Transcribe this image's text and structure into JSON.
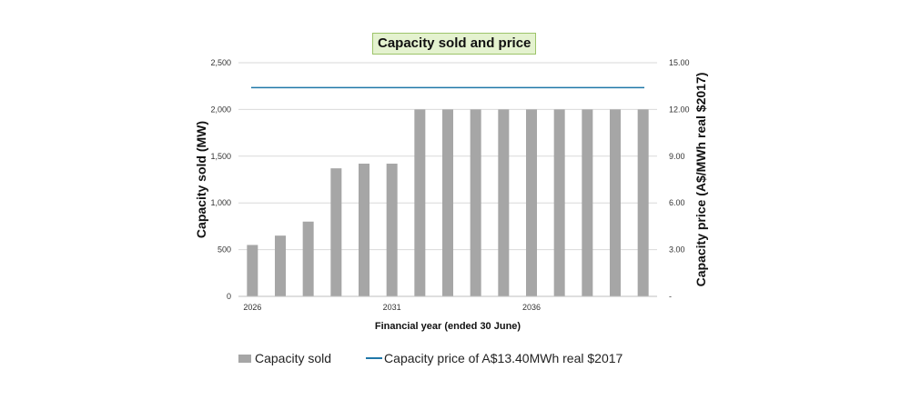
{
  "chart_data": {
    "type": "bar",
    "title": "Capacity sold and price",
    "xlabel": "Financial year (ended 30 June)",
    "ylabel": "Capacity sold (MW)",
    "y2label": "Capacity price (A$/MWh real $2017)",
    "ylim": [
      0,
      2500
    ],
    "y2lim": [
      0,
      15
    ],
    "y_ticks": [
      "0",
      "500",
      "1,000",
      "1,500",
      "2,000",
      "2,500"
    ],
    "y2_ticks": [
      "-",
      "3.00",
      "6.00",
      "9.00",
      "12.00",
      "15.00"
    ],
    "x_tick_labels": [
      "2026",
      "2031",
      "2036"
    ],
    "categories": [
      2026,
      2027,
      2028,
      2029,
      2030,
      2031,
      2032,
      2033,
      2034,
      2035,
      2036,
      2037,
      2038,
      2039,
      2040
    ],
    "series": [
      {
        "name": "Capacity sold",
        "type": "bar",
        "axis": "left",
        "color": "#a6a6a6",
        "values": [
          550,
          650,
          800,
          1370,
          1420,
          1420,
          2000,
          2000,
          2000,
          2000,
          2000,
          2000,
          2000,
          2000,
          2000
        ]
      },
      {
        "name": "Capacity price of A$13.40MWh real $2017",
        "type": "line",
        "axis": "right",
        "color": "#1f77a8",
        "values": [
          13.4,
          13.4,
          13.4,
          13.4,
          13.4,
          13.4,
          13.4,
          13.4,
          13.4,
          13.4,
          13.4,
          13.4,
          13.4,
          13.4,
          13.4
        ]
      }
    ],
    "grid": "horizontal",
    "legend_position": "bottom"
  }
}
